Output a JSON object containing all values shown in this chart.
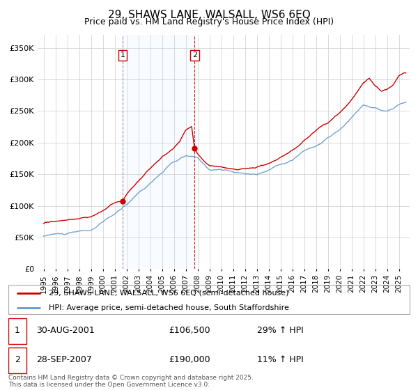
{
  "title": "29, SHAWS LANE, WALSALL, WS6 6EQ",
  "subtitle": "Price paid vs. HM Land Registry's House Price Index (HPI)",
  "property_label": "29, SHAWS LANE, WALSALL, WS6 6EQ (semi-detached house)",
  "hpi_label": "HPI: Average price, semi-detached house, South Staffordshire",
  "footer": "Contains HM Land Registry data © Crown copyright and database right 2025.\nThis data is licensed under the Open Government Licence v3.0.",
  "sale1_date": "30-AUG-2001",
  "sale1_price": "£106,500",
  "sale1_hpi": "29% ↑ HPI",
  "sale2_date": "28-SEP-2007",
  "sale2_price": "£190,000",
  "sale2_hpi": "11% ↑ HPI",
  "property_color": "#cc0000",
  "hpi_color": "#6699cc",
  "vline1_color": "#888888",
  "vline2_color": "#cc0000",
  "shade_color": "#ddeeff",
  "ylim": [
    0,
    370000
  ],
  "yticks": [
    0,
    50000,
    100000,
    150000,
    200000,
    250000,
    300000,
    350000
  ],
  "sale1_x": 2001.667,
  "sale2_x": 2007.75
}
